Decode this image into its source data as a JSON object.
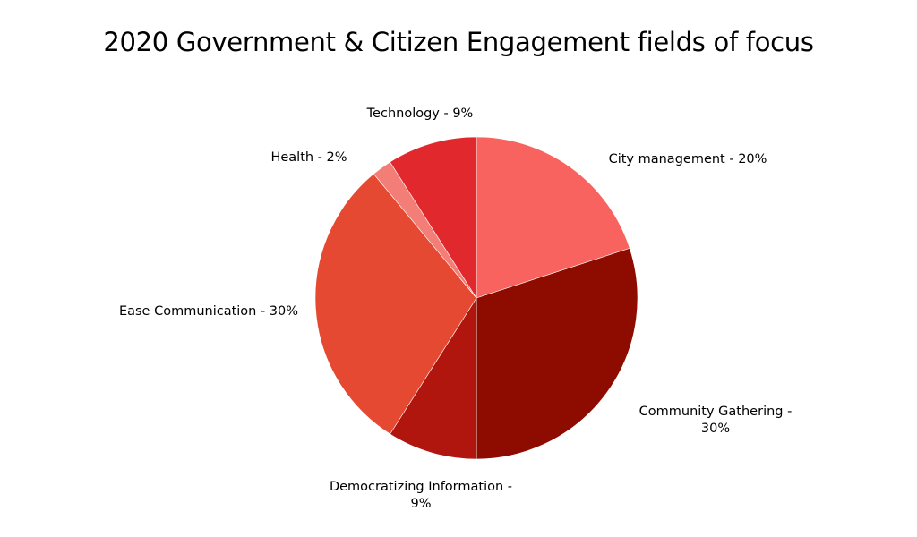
{
  "chart_data": {
    "type": "pie",
    "title": "2020 Government & Citizen Engagement fields of focus",
    "start_angle_deg": 0,
    "direction": "clockwise",
    "slices": [
      {
        "label_lines": [
          "City management - 20%"
        ],
        "value": 20,
        "color": "#f8635f"
      },
      {
        "label_lines": [
          "Community Gathering -",
          "30%"
        ],
        "value": 30,
        "color": "#8e0b00"
      },
      {
        "label_lines": [
          "Democratizing Information -",
          "9%"
        ],
        "value": 9,
        "color": "#b0160e"
      },
      {
        "label_lines": [
          "Ease Communication - 30%"
        ],
        "value": 30,
        "color": "#e64932"
      },
      {
        "label_lines": [
          "Health - 2%"
        ],
        "value": 2,
        "color": "#f27e77"
      },
      {
        "label_lines": [
          "Technology - 9%"
        ],
        "value": 9,
        "color": "#e1292d"
      }
    ]
  }
}
